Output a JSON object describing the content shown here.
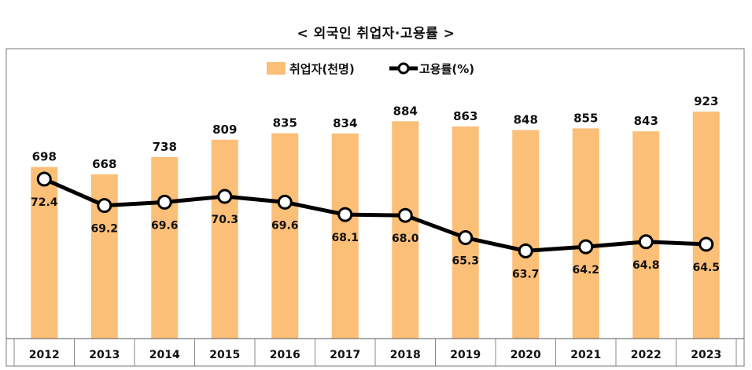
{
  "chart_data": {
    "type": "bar",
    "title": "< 외국인 취업자·고용률 >",
    "categories": [
      "2012",
      "2013",
      "2014",
      "2015",
      "2016",
      "2017",
      "2018",
      "2019",
      "2020",
      "2021",
      "2022",
      "2023"
    ],
    "series": [
      {
        "name": "취업자(천명)",
        "kind": "bar",
        "color": "#FBBF78",
        "values": [
          698,
          668,
          738,
          809,
          835,
          834,
          884,
          863,
          848,
          855,
          843,
          923
        ],
        "labels": [
          "698",
          "668",
          "738",
          "809",
          "835",
          "834",
          "884",
          "863",
          "848",
          "855",
          "843",
          "923"
        ]
      },
      {
        "name": "고용률(%)",
        "kind": "line",
        "color": "#000000",
        "values": [
          72.4,
          69.2,
          69.6,
          70.3,
          69.6,
          68.1,
          68.0,
          65.3,
          63.7,
          64.2,
          64.8,
          64.5
        ],
        "labels": [
          "72.4",
          "69.2",
          "69.6",
          "70.3",
          "69.6",
          "68.1",
          "68.0",
          "65.3",
          "63.7",
          "64.2",
          "64.8",
          "64.5"
        ]
      }
    ],
    "bar_axis_range": [
      0,
      1000
    ],
    "line_axis_range": [
      50,
      80
    ],
    "legend_position": "top-center",
    "grid": false
  }
}
